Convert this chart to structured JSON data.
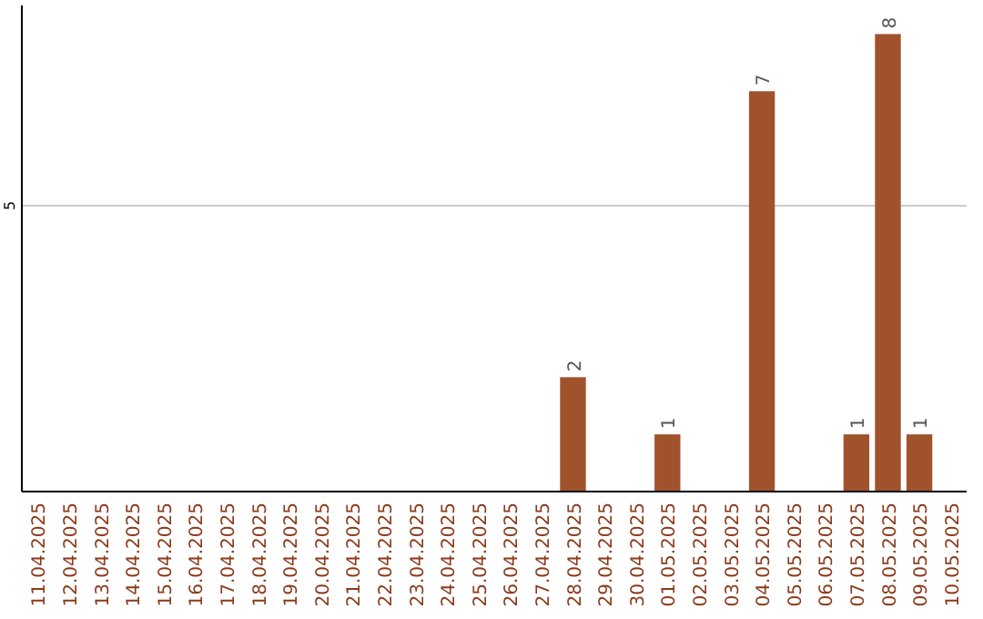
{
  "chart_data": {
    "type": "bar",
    "categories": [
      "11.04.2025",
      "12.04.2025",
      "13.04.2025",
      "14.04.2025",
      "15.04.2025",
      "16.04.2025",
      "17.04.2025",
      "18.04.2025",
      "19.04.2025",
      "20.04.2025",
      "21.04.2025",
      "22.04.2025",
      "23.04.2025",
      "24.04.2025",
      "25.04.2025",
      "26.04.2025",
      "27.04.2025",
      "28.04.2025",
      "29.04.2025",
      "30.04.2025",
      "01.05.2025",
      "02.05.2025",
      "03.05.2025",
      "04.05.2025",
      "05.05.2025",
      "06.05.2025",
      "07.05.2025",
      "08.05.2025",
      "09.05.2025",
      "10.05.2025"
    ],
    "values": [
      null,
      null,
      null,
      null,
      null,
      null,
      null,
      null,
      null,
      null,
      null,
      null,
      null,
      null,
      null,
      null,
      null,
      2,
      null,
      null,
      1,
      null,
      null,
      7,
      null,
      null,
      1,
      8,
      1,
      null
    ],
    "data_labels": true,
    "color": "#a0522d",
    "ylim": [
      0,
      8.5
    ],
    "yticks": [
      5
    ],
    "grid": "y"
  }
}
